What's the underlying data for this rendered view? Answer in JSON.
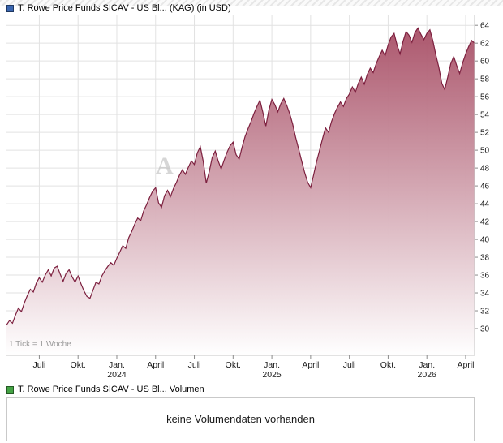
{
  "price_section": {
    "title": "T. Rowe Price Funds SICAV - US Bl... (KAG) (in USD)",
    "marker_color": "#3a66b0",
    "tick_note": "1 Tick = 1 Woche",
    "watermark_letter": "A"
  },
  "volume_section": {
    "title": "T. Rowe Price Funds SICAV - US Bl... Volumen",
    "marker_color": "#44a344",
    "message": "keine Volumendaten vorhanden"
  },
  "chart_data": {
    "type": "area",
    "title": "T. Rowe Price Funds SICAV - US Bl... (KAG) (in USD)",
    "x_unit": "1 Tick = 1 Woche",
    "ylim": [
      27,
      65.2
    ],
    "y_ticks": [
      64,
      62,
      60,
      58,
      56,
      54,
      52,
      50,
      48,
      46,
      44,
      42,
      40,
      38,
      36,
      34,
      32,
      30
    ],
    "x_tick_indices": [
      11,
      24,
      37,
      50,
      63,
      76,
      89,
      102,
      115,
      128,
      141,
      154
    ],
    "x_tick_labels": [
      "Juli",
      "Okt.",
      "Jan.",
      "April",
      "Juli",
      "Okt.",
      "Jan.",
      "April",
      "Juli",
      "Okt.",
      "Jan.",
      "April"
    ],
    "x_tick_years": [
      "",
      "",
      "2024",
      "",
      "",
      "",
      "2025",
      "",
      "",
      "",
      "2026",
      ""
    ],
    "grid": true,
    "legend": "none",
    "colors": {
      "line": "#7c1f3e",
      "fill_top": "#a84f66",
      "fill_bottom": "#ffffff",
      "grid": "#e2e2e2",
      "axis": "#c4c4c4",
      "tick": "#8a8a8a",
      "label": "#1a1a1a",
      "watermark": "#9a9a9a"
    },
    "values": [
      30.4,
      30.9,
      30.6,
      31.5,
      32.3,
      31.9,
      32.9,
      33.7,
      34.4,
      34.1,
      35.1,
      35.7,
      35.2,
      36.0,
      36.6,
      35.9,
      36.8,
      37.0,
      36.1,
      35.3,
      36.2,
      36.6,
      35.8,
      35.2,
      35.9,
      35.0,
      34.2,
      33.6,
      33.4,
      34.3,
      35.2,
      35.0,
      35.9,
      36.5,
      37.0,
      37.4,
      37.1,
      37.9,
      38.6,
      39.3,
      39.0,
      40.2,
      40.9,
      41.7,
      42.4,
      42.1,
      43.2,
      43.9,
      44.7,
      45.4,
      45.8,
      44.1,
      43.6,
      44.9,
      45.5,
      44.8,
      45.7,
      46.4,
      47.2,
      47.8,
      47.3,
      48.1,
      48.8,
      48.4,
      49.7,
      50.4,
      48.7,
      46.3,
      47.6,
      49.2,
      49.9,
      48.8,
      47.9,
      48.9,
      49.8,
      50.5,
      50.9,
      49.5,
      49.0,
      50.3,
      51.5,
      52.4,
      53.2,
      54.1,
      54.9,
      55.6,
      54.2,
      52.7,
      54.5,
      55.7,
      55.1,
      54.3,
      55.2,
      55.8,
      55.0,
      54.1,
      52.9,
      51.4,
      50.1,
      48.8,
      47.5,
      46.4,
      45.8,
      47.2,
      48.7,
      50.0,
      51.3,
      52.5,
      52.0,
      53.2,
      54.1,
      54.8,
      55.4,
      54.9,
      55.8,
      56.3,
      57.1,
      56.5,
      57.5,
      58.2,
      57.4,
      58.5,
      59.2,
      58.7,
      59.7,
      60.5,
      61.2,
      60.6,
      61.8,
      62.7,
      63.1,
      61.8,
      60.8,
      62.2,
      63.3,
      62.9,
      62.1,
      63.2,
      63.7,
      63.0,
      62.4,
      63.1,
      63.5,
      62.3,
      60.7,
      59.3,
      57.5,
      56.8,
      58.2,
      59.7,
      60.5,
      59.5,
      58.6,
      59.8,
      60.8,
      61.6,
      62.3,
      62.0
    ]
  }
}
